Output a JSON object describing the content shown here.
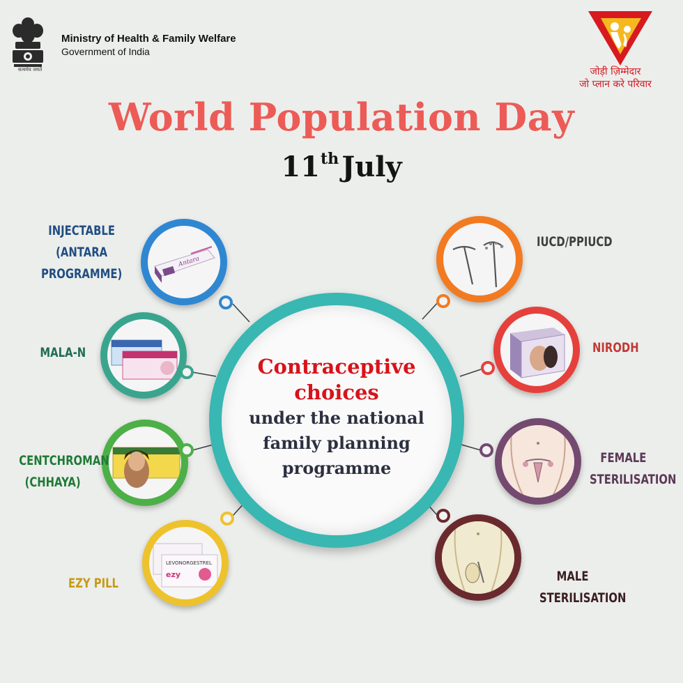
{
  "header": {
    "ministry_line1": "Ministry of Health & Family Welfare",
    "ministry_line2": "Government of India",
    "motto": "सत्यमेव जयते",
    "slogan_line1": "जोड़ी ज़िम्मेदार",
    "slogan_line2": "जो प्लान करे परिवार"
  },
  "title": "World Population Day",
  "date": {
    "day": "11",
    "suffix": "th",
    "month": "July"
  },
  "center": {
    "line1": "Contraceptive",
    "line2": "choices",
    "line3": "under the national",
    "line4": "family planning",
    "line5": "programme"
  },
  "methods": {
    "injectable": {
      "line1": "INJECTABLE",
      "line2": "(ANTARA PROGRAMME)",
      "color": "#2f87d2"
    },
    "mala_n": {
      "line1": "MALA-N",
      "color": "#3aa58e"
    },
    "centchroman": {
      "line1": "CENTCHROMAN",
      "line2": "(CHHAYA)",
      "color": "#4cb047"
    },
    "ezy_pill": {
      "line1": "EZY PILL",
      "color": "#eec22c"
    },
    "iucd": {
      "line1": "IUCD/PPIUCD",
      "color": "#f27a21"
    },
    "nirodh": {
      "line1": "NIRODH",
      "color": "#e6403c"
    },
    "female": {
      "line1": "FEMALE",
      "line2": "STERILISATION",
      "color": "#744a70"
    },
    "male": {
      "line1": "MALE",
      "line2": "STERILISATION",
      "color": "#6a2a2d"
    }
  },
  "colors": {
    "background": "#eceeec",
    "title": "#ec5b56",
    "center_ring": "#39b7b2",
    "center_heading": "#d8131a",
    "center_body": "#2c3040"
  }
}
